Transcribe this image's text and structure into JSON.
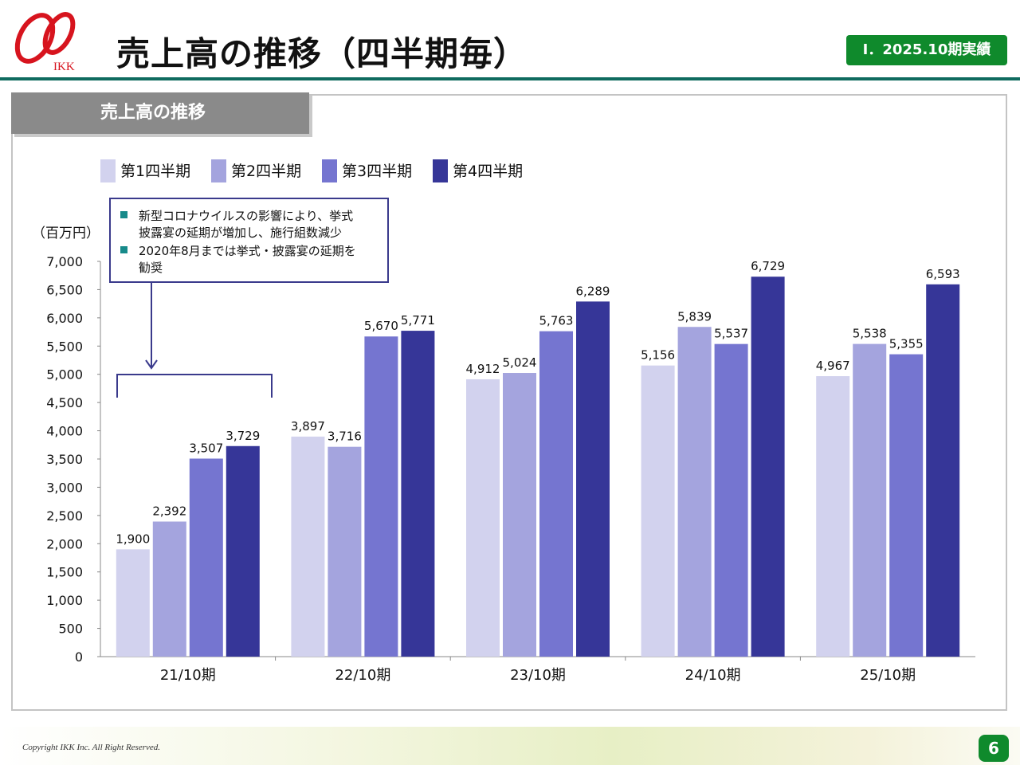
{
  "header": {
    "logo_text": "IKK",
    "title": "売上高の推移（四半期毎）",
    "section_badge": "Ⅰ．2025.10期実績"
  },
  "panel": {
    "tab_label": "売上高の推移"
  },
  "annotation": {
    "lines": [
      [
        "新型コロナウイルスの影響により、挙式",
        "披露宴の延期が増加し、施行組数減少"
      ],
      [
        "2020年8月までは挙式・披露宴の延期を",
        "勧奨"
      ]
    ]
  },
  "chart_data": {
    "type": "bar",
    "title": "売上高の推移",
    "ylabel": "（百万円）",
    "xlabel": "",
    "ylim": [
      0,
      7000
    ],
    "ytick_step": 500,
    "categories": [
      "21/10期",
      "22/10期",
      "23/10期",
      "24/10期",
      "25/10期"
    ],
    "series": [
      {
        "name": "第1四半期",
        "color": "#d2d2ee",
        "values": [
          1900,
          3897,
          4912,
          5156,
          4967
        ]
      },
      {
        "name": "第2四半期",
        "color": "#a4a4de",
        "values": [
          2392,
          3716,
          5024,
          5839,
          5538
        ]
      },
      {
        "name": "第3四半期",
        "color": "#7575d0",
        "values": [
          3507,
          5670,
          5763,
          5537,
          5355
        ]
      },
      {
        "name": "第4四半期",
        "color": "#363698",
        "values": [
          3729,
          5771,
          6289,
          6729,
          6593
        ]
      }
    ],
    "legend_position": "top-left",
    "grid": false
  },
  "footer": {
    "copyright": "Copyright IKK Inc. All Right Reserved.",
    "page_number": "6"
  },
  "colors": {
    "accent_green": "#0f8a2c",
    "rule_teal": "#0f6b5f",
    "logo_red": "#d7141e",
    "annotation_border": "#3a3a8c",
    "annotation_bullet": "#178a8a"
  }
}
